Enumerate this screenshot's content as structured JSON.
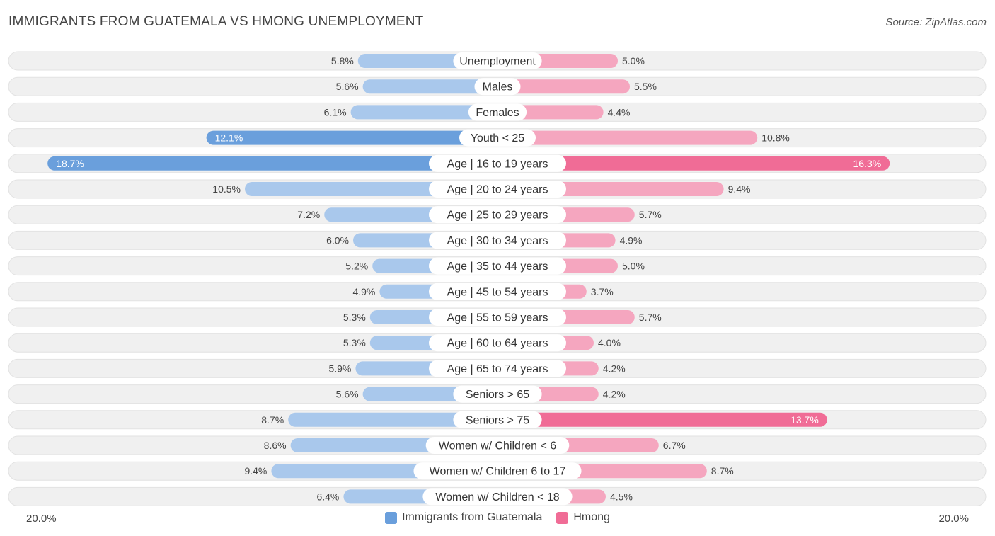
{
  "header": {
    "title": "IMMIGRANTS FROM GUATEMALA VS HMONG UNEMPLOYMENT",
    "source": "Source: ZipAtlas.com"
  },
  "colors": {
    "left_strong": "#6a9fdc",
    "left_light": "#a9c8ec",
    "right_strong": "#f06c96",
    "right_light": "#f5a6bf",
    "row_bg": "#f0f0f0"
  },
  "chart_data": {
    "type": "bar",
    "orientation": "diverging-horizontal",
    "title": "IMMIGRANTS FROM GUATEMALA VS HMONG UNEMPLOYMENT",
    "axis_max": 20.0,
    "axis_left_label": "20.0%",
    "axis_right_label": "20.0%",
    "categories": [
      "Unemployment",
      "Males",
      "Females",
      "Youth < 25",
      "Age | 16 to 19 years",
      "Age | 20 to 24 years",
      "Age | 25 to 29 years",
      "Age | 30 to 34 years",
      "Age | 35 to 44 years",
      "Age | 45 to 54 years",
      "Age | 55 to 59 years",
      "Age | 60 to 64 years",
      "Age | 65 to 74 years",
      "Seniors > 65",
      "Seniors > 75",
      "Women w/ Children < 6",
      "Women w/ Children 6 to 17",
      "Women w/ Children < 18"
    ],
    "series": [
      {
        "name": "Immigrants from Guatemala",
        "side": "left",
        "values": [
          5.8,
          5.6,
          6.1,
          12.1,
          18.7,
          10.5,
          7.2,
          6.0,
          5.2,
          4.9,
          5.3,
          5.3,
          5.9,
          5.6,
          8.7,
          8.6,
          9.4,
          6.4
        ],
        "labels": [
          "5.8%",
          "5.6%",
          "6.1%",
          "12.1%",
          "18.7%",
          "10.5%",
          "7.2%",
          "6.0%",
          "5.2%",
          "4.9%",
          "5.3%",
          "5.3%",
          "5.9%",
          "5.6%",
          "8.7%",
          "8.6%",
          "9.4%",
          "6.4%"
        ]
      },
      {
        "name": "Hmong",
        "side": "right",
        "values": [
          5.0,
          5.5,
          4.4,
          10.8,
          16.3,
          9.4,
          5.7,
          4.9,
          5.0,
          3.7,
          5.7,
          4.0,
          4.2,
          4.2,
          13.7,
          6.7,
          8.7,
          4.5
        ],
        "labels": [
          "5.0%",
          "5.5%",
          "4.4%",
          "10.8%",
          "16.3%",
          "9.4%",
          "5.7%",
          "4.9%",
          "5.0%",
          "3.7%",
          "5.7%",
          "4.0%",
          "4.2%",
          "4.2%",
          "13.7%",
          "6.7%",
          "8.7%",
          "4.5%"
        ]
      }
    ]
  },
  "legend": {
    "left_label": "Immigrants from Guatemala",
    "right_label": "Hmong"
  }
}
